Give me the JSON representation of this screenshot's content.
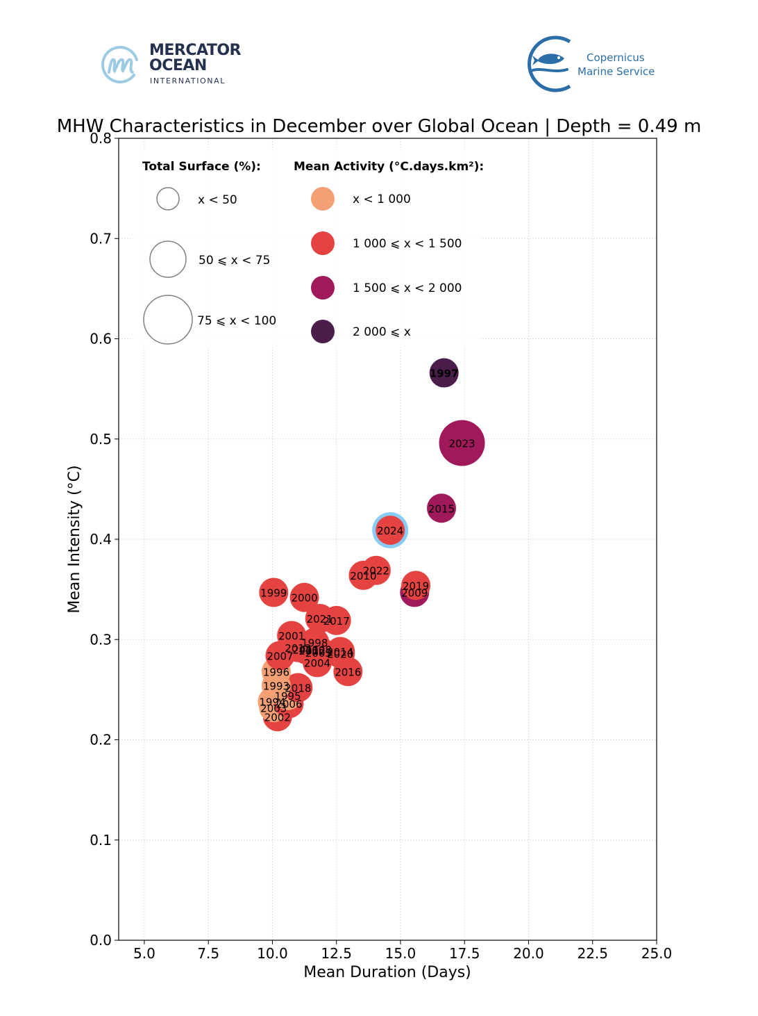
{
  "logos": {
    "mercator": {
      "name_line1": "MERCATOR",
      "name_line2": "OCEAN",
      "subtitle": "INTERNATIONAL",
      "icon": "mercator-m-circle-icon"
    },
    "copernicus": {
      "line1": "Copernicus",
      "line2": "Marine Service",
      "icon": "fish-wave-icon"
    }
  },
  "colors": {
    "lt1000": "#f4a074",
    "1000to1500": "#e54242",
    "1500to2000": "#a01a5b",
    "gte2000": "#4a1d4a",
    "highlight_ring": "#88cdf6",
    "mercator_blue": "#24314f",
    "copernicus_blue": "#2b6ea8"
  },
  "chart_data": {
    "type": "scatter",
    "title": "MHW Characteristics in December over Global Ocean | Depth = 0.49 m",
    "xlabel": "Mean Duration (Days)",
    "ylabel": "Mean Intensity (°C)",
    "xlim": [
      4.0,
      25.0
    ],
    "ylim": [
      0.0,
      0.8
    ],
    "xticks": [
      "5.0",
      "7.5",
      "10.0",
      "12.5",
      "15.0",
      "17.5",
      "20.0",
      "22.5",
      "25.0"
    ],
    "xtick_values": [
      5.0,
      7.5,
      10.0,
      12.5,
      15.0,
      17.5,
      20.0,
      22.5,
      25.0
    ],
    "yticks": [
      "0.0",
      "0.1",
      "0.2",
      "0.3",
      "0.4",
      "0.5",
      "0.6",
      "0.7",
      "0.8"
    ],
    "ytick_values": [
      0.0,
      0.1,
      0.2,
      0.3,
      0.4,
      0.5,
      0.6,
      0.7,
      0.8
    ],
    "grid": true,
    "legend": {
      "placement": "top-left",
      "size_title": "Total Surface (%):",
      "size_entries": [
        {
          "label": "x < 50",
          "size_class": "small"
        },
        {
          "label": "50 ⩽ x < 75",
          "size_class": "medium"
        },
        {
          "label": "75 ⩽ x < 100",
          "size_class": "large"
        }
      ],
      "color_title": "Mean Activity (°C.days.km²):",
      "color_entries": [
        {
          "label": "x < 1 000",
          "color_key": "lt1000"
        },
        {
          "label": "1 000 ⩽ x < 1 500",
          "color_key": "1000to1500"
        },
        {
          "label": "1 500 ⩽ x < 2 000",
          "color_key": "1500to2000"
        },
        {
          "label": "2 000 ⩽ x",
          "color_key": "gte2000"
        }
      ]
    },
    "highlight_year": "2024",
    "points": [
      {
        "year": "2002",
        "x": 10.2,
        "y": 0.223,
        "surface": "small",
        "activity": "1000to1500"
      },
      {
        "year": "2003",
        "x": 10.05,
        "y": 0.232,
        "surface": "small",
        "activity": "lt1000"
      },
      {
        "year": "1994",
        "x": 10.0,
        "y": 0.238,
        "surface": "small",
        "activity": "lt1000"
      },
      {
        "year": "2006",
        "x": 10.65,
        "y": 0.236,
        "surface": "small",
        "activity": "1000to1500"
      },
      {
        "year": "1995",
        "x": 10.6,
        "y": 0.244,
        "surface": "small",
        "activity": "lt1000"
      },
      {
        "year": "2018",
        "x": 11.0,
        "y": 0.252,
        "surface": "small",
        "activity": "1000to1500"
      },
      {
        "year": "1993",
        "x": 10.15,
        "y": 0.254,
        "surface": "small",
        "activity": "lt1000"
      },
      {
        "year": "1996",
        "x": 10.15,
        "y": 0.268,
        "surface": "small",
        "activity": "lt1000"
      },
      {
        "year": "2016",
        "x": 12.95,
        "y": 0.268,
        "surface": "small",
        "activity": "1000to1500"
      },
      {
        "year": "2004",
        "x": 11.75,
        "y": 0.277,
        "surface": "small",
        "activity": "1000to1500"
      },
      {
        "year": "2007",
        "x": 10.3,
        "y": 0.284,
        "surface": "small",
        "activity": "1000to1500"
      },
      {
        "year": "2012",
        "x": 11.55,
        "y": 0.289,
        "surface": "small",
        "activity": "1000to1500"
      },
      {
        "year": "2005",
        "x": 11.8,
        "y": 0.287,
        "surface": "small",
        "activity": "1000to1500"
      },
      {
        "year": "2008",
        "x": 11.8,
        "y": 0.29,
        "surface": "small",
        "activity": "1000to1500"
      },
      {
        "year": "2011",
        "x": 11.3,
        "y": 0.29,
        "surface": "small",
        "activity": "1000to1500"
      },
      {
        "year": "2013",
        "x": 11.0,
        "y": 0.292,
        "surface": "small",
        "activity": "1000to1500"
      },
      {
        "year": "2020",
        "x": 12.65,
        "y": 0.286,
        "surface": "small",
        "activity": "1000to1500"
      },
      {
        "year": "2014",
        "x": 12.65,
        "y": 0.288,
        "surface": "small",
        "activity": "1000to1500"
      },
      {
        "year": "1998",
        "x": 11.65,
        "y": 0.297,
        "surface": "small",
        "activity": "1000to1500"
      },
      {
        "year": "2001",
        "x": 10.75,
        "y": 0.304,
        "surface": "small",
        "activity": "1000to1500"
      },
      {
        "year": "2017",
        "x": 12.5,
        "y": 0.319,
        "surface": "small",
        "activity": "1000to1500"
      },
      {
        "year": "2021",
        "x": 11.85,
        "y": 0.321,
        "surface": "small",
        "activity": "1000to1500"
      },
      {
        "year": "2000",
        "x": 11.25,
        "y": 0.342,
        "surface": "small",
        "activity": "1000to1500"
      },
      {
        "year": "1999",
        "x": 10.05,
        "y": 0.347,
        "surface": "small",
        "activity": "1000to1500"
      },
      {
        "year": "2009",
        "x": 15.55,
        "y": 0.347,
        "surface": "small",
        "activity": "1500to2000"
      },
      {
        "year": "2019",
        "x": 15.6,
        "y": 0.354,
        "surface": "small",
        "activity": "1000to1500"
      },
      {
        "year": "2010",
        "x": 13.55,
        "y": 0.364,
        "surface": "small",
        "activity": "1000to1500"
      },
      {
        "year": "2022",
        "x": 14.05,
        "y": 0.369,
        "surface": "small",
        "activity": "1000to1500"
      },
      {
        "year": "2024",
        "x": 14.6,
        "y": 0.409,
        "surface": "small",
        "activity": "1000to1500"
      },
      {
        "year": "2015",
        "x": 16.6,
        "y": 0.431,
        "surface": "small",
        "activity": "1500to2000"
      },
      {
        "year": "2023",
        "x": 17.4,
        "y": 0.496,
        "surface": "large",
        "activity": "1500to2000"
      },
      {
        "year": "1997",
        "x": 16.7,
        "y": 0.566,
        "surface": "small",
        "activity": "gte2000"
      }
    ]
  }
}
